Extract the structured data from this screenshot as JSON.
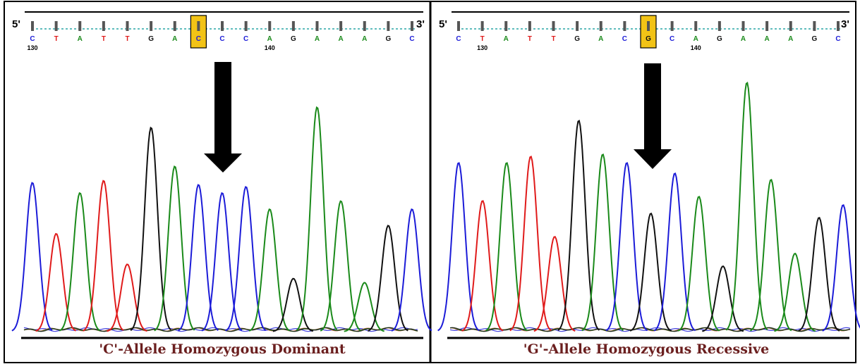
{
  "colors": {
    "A": "#1a8a1a",
    "C": "#1c1cd8",
    "G": "#111111",
    "T": "#e01b1b",
    "title": "#6b1f1f",
    "highlight": "#f2c316",
    "arrow": "#000000"
  },
  "panels": [
    {
      "id": "left",
      "title": "'C'-Allele Homozygous Dominant",
      "five_prime": "5'",
      "three_prime": "3'",
      "bases": [
        "C",
        "T",
        "A",
        "T",
        "T",
        "G",
        "A",
        "C",
        "C",
        "C",
        "A",
        "G",
        "A",
        "A",
        "A",
        "G",
        "C"
      ],
      "highlight_index": 7,
      "positions": [
        {
          "label": "130",
          "index": 0
        },
        {
          "label": "140",
          "index": 10
        }
      ],
      "peaks": [
        {
          "base": "C",
          "h": 0.73
        },
        {
          "base": "T",
          "h": 0.48
        },
        {
          "base": "A",
          "h": 0.68
        },
        {
          "base": "T",
          "h": 0.74
        },
        {
          "base": "T",
          "h": 0.33
        },
        {
          "base": "G",
          "h": 1.0
        },
        {
          "base": "A",
          "h": 0.81
        },
        {
          "base": "C",
          "h": 0.72
        },
        {
          "base": "C",
          "h": 0.68
        },
        {
          "base": "C",
          "h": 0.71
        },
        {
          "base": "A",
          "h": 0.6
        },
        {
          "base": "G",
          "h": 0.26
        },
        {
          "base": "A",
          "h": 1.1
        },
        {
          "base": "A",
          "h": 0.64
        },
        {
          "base": "A",
          "h": 0.24
        },
        {
          "base": "G",
          "h": 0.52
        },
        {
          "base": "C",
          "h": 0.6
        }
      ]
    },
    {
      "id": "right",
      "title": "'G'-Allele Homozygous Recessive",
      "five_prime": "5'",
      "three_prime": "3'",
      "bases": [
        "C",
        "T",
        "A",
        "T",
        "T",
        "G",
        "A",
        "C",
        "G",
        "C",
        "A",
        "G",
        "A",
        "A",
        "A",
        "G",
        "C"
      ],
      "highlight_index": 8,
      "positions": [
        {
          "label": "130",
          "index": 1
        },
        {
          "label": "140",
          "index": 10
        }
      ],
      "peaks": [
        {
          "base": "C",
          "h": 0.8
        },
        {
          "base": "T",
          "h": 0.62
        },
        {
          "base": "A",
          "h": 0.8
        },
        {
          "base": "T",
          "h": 0.83
        },
        {
          "base": "T",
          "h": 0.45
        },
        {
          "base": "G",
          "h": 1.0
        },
        {
          "base": "A",
          "h": 0.84
        },
        {
          "base": "C",
          "h": 0.8
        },
        {
          "base": "G",
          "h": 0.56
        },
        {
          "base": "C",
          "h": 0.75
        },
        {
          "base": "A",
          "h": 0.64
        },
        {
          "base": "G",
          "h": 0.31
        },
        {
          "base": "A",
          "h": 1.18
        },
        {
          "base": "A",
          "h": 0.72
        },
        {
          "base": "A",
          "h": 0.37
        },
        {
          "base": "G",
          "h": 0.54
        },
        {
          "base": "C",
          "h": 0.6
        }
      ]
    }
  ]
}
